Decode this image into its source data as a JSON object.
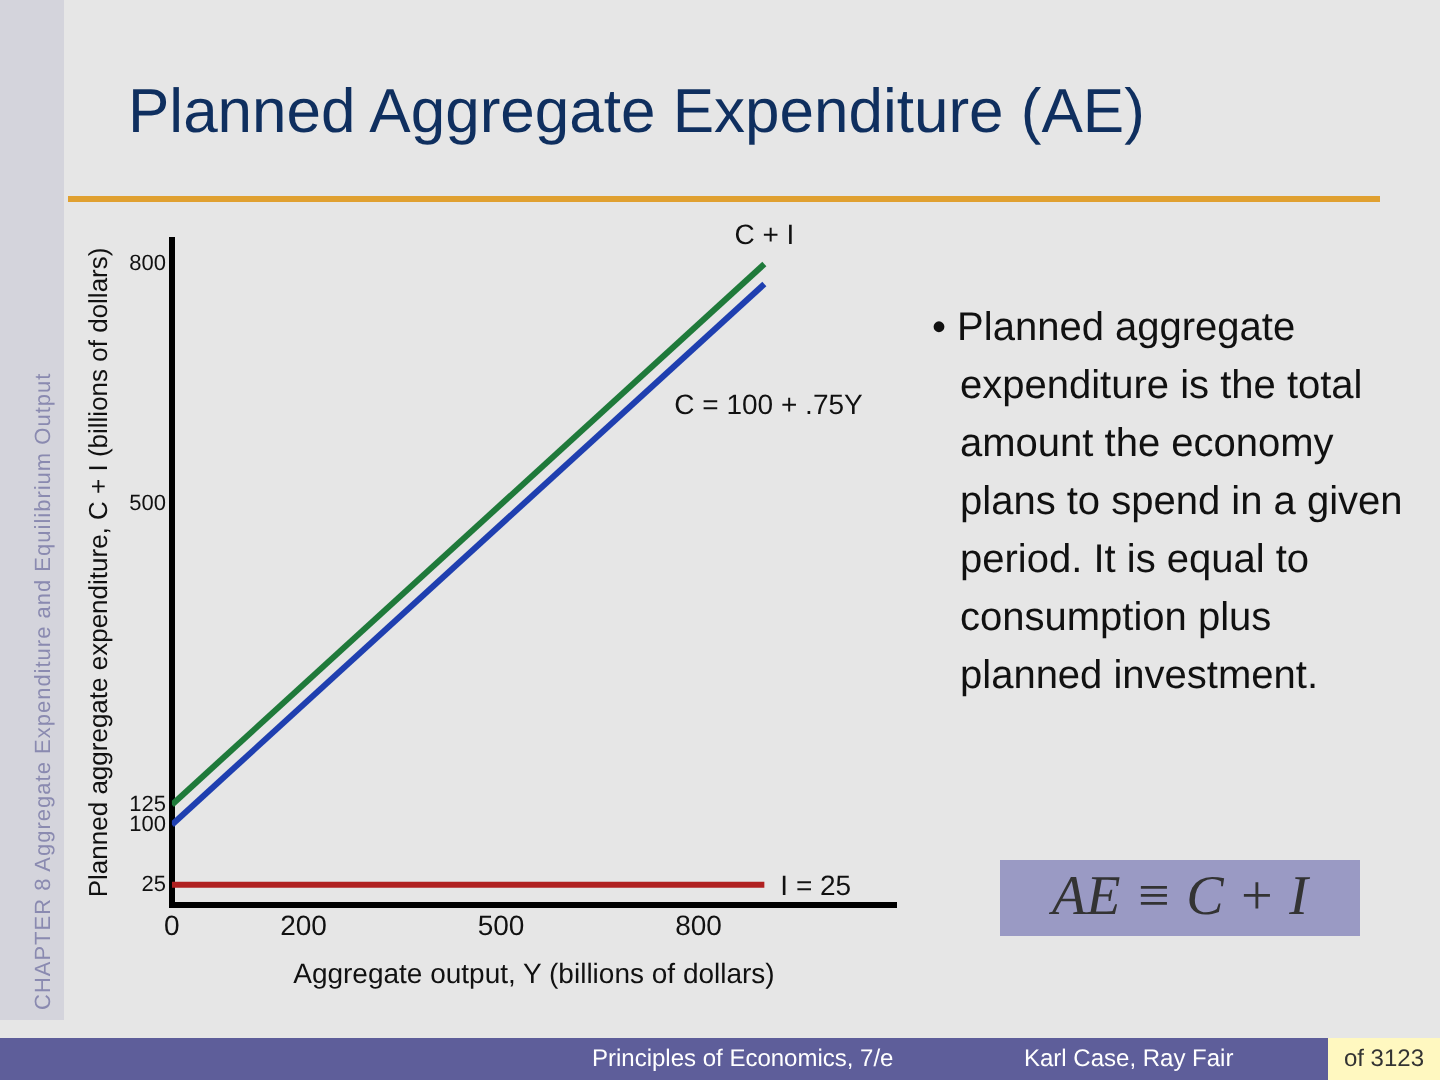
{
  "chart_data": {
    "type": "line",
    "title": "Planned Aggregate Expenditure (AE)",
    "xlabel": "Aggregate output, Y (billions of dollars)",
    "ylabel": "Planned aggregate expenditure, C + I (billions of dollars)",
    "x": [
      0,
      900
    ],
    "series": [
      {
        "name": "C + I",
        "color": "#1f7a3a",
        "values": [
          125,
          800
        ]
      },
      {
        "name": "C = 100 + .75Y",
        "color": "#1f3fb0",
        "values": [
          100,
          775
        ]
      },
      {
        "name": "I = 25",
        "color": "#b02020",
        "values": [
          25,
          25
        ]
      }
    ],
    "xlim": [
      0,
      1100
    ],
    "xticks": [
      0,
      200,
      500,
      800
    ],
    "ylim": [
      0,
      830
    ],
    "yticks": [
      25,
      100,
      125,
      500,
      800
    ],
    "grid": false,
    "legend": false,
    "marker": "none",
    "line_style": "solid",
    "annotations": [
      "• Planned aggregate expenditure is the total amount the economy plans to spend in a given period. It is equal to consumption plus planned investment.",
      "CHAPTER 8  Aggregate Expenditure and Equilibrium Output",
      "AE ≡ C + I",
      "Principles of Economics, 7/e",
      "Karl Case, Ray Fair",
      "of 3123"
    ]
  }
}
